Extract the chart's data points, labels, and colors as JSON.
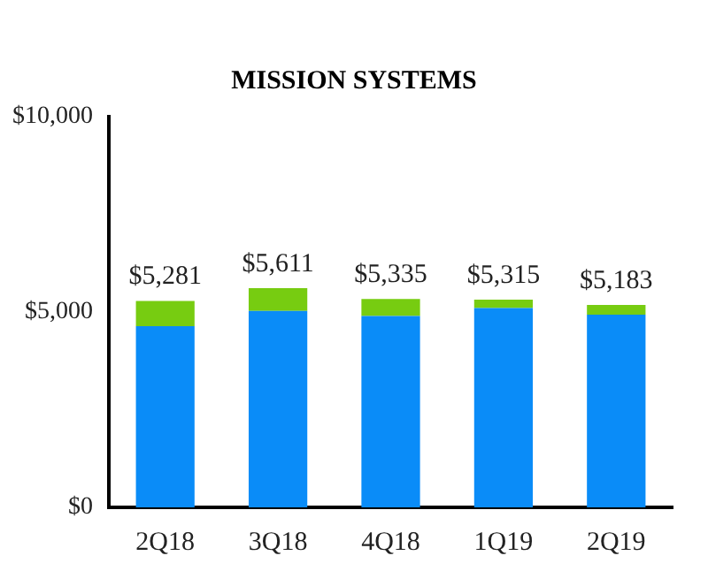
{
  "chart_data": {
    "type": "bar",
    "title": "MISSION SYSTEMS",
    "categories": [
      "2Q18",
      "3Q18",
      "4Q18",
      "1Q19",
      "2Q19"
    ],
    "stacked": true,
    "series": [
      {
        "color": "#0a8cf8",
        "values": [
          4640,
          5030,
          4900,
          5100,
          4930
        ]
      },
      {
        "color": "#77cc11",
        "values": [
          641,
          581,
          435,
          215,
          253
        ]
      }
    ],
    "totals": [
      "$5,281",
      "$5,611",
      "$5,335",
      "$5,315",
      "$5,183"
    ],
    "ylim": [
      0,
      10000
    ],
    "yticks": [
      {
        "value": 0,
        "label": "$0"
      },
      {
        "value": 5000,
        "label": "$5,000"
      },
      {
        "value": 10000,
        "label": "$10,000"
      }
    ],
    "grid": false,
    "legend": false
  }
}
